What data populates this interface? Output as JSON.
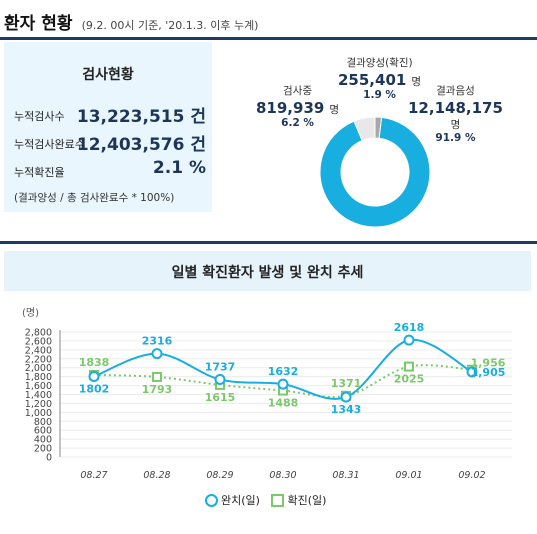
{
  "header": {
    "title": "환자 현황",
    "subtitle": "(9.2. 00시 기준, '20.1.3. 이후 누계)"
  },
  "colors": {
    "navy": "#1f3b63",
    "cyan": "#18aee0",
    "green": "#7bc96a",
    "panel": "#e9f6fd"
  },
  "test_status": {
    "title": "검사현황",
    "rows": [
      {
        "label": "누적검사수",
        "value": "13,223,515 건"
      },
      {
        "label": "누적검사완료수",
        "value": "12,403,576 건"
      },
      {
        "label": "누적확진율",
        "value": "2.1 %"
      }
    ],
    "note": "(결과양성 / 총 검사완료수 * 100%)"
  },
  "donut": {
    "testing": {
      "name": "검사중",
      "value": "819,939",
      "unit": "명",
      "pct": "6.2 %"
    },
    "positive": {
      "name": "결과양성(확진)",
      "value": "255,401",
      "unit": "명",
      "pct": "1.9 %"
    },
    "negative": {
      "name": "결과음성",
      "value": "12,148,175",
      "unit": "명",
      "pct": "91.9 %"
    }
  },
  "trend": {
    "title": "일별 확진환자 발생 및 완치 추세",
    "legend_recovered": "완치(일)",
    "legend_confirmed": "확진(일)"
  },
  "chart_data": [
    {
      "type": "pie",
      "labels": [
        "결과음성",
        "검사중",
        "결과양성(확진)"
      ],
      "values": [
        12148175,
        819939,
        255401
      ],
      "percents": [
        91.9,
        6.2,
        1.9
      ]
    },
    {
      "type": "line",
      "title": "일별 확진환자 발생 및 완치 추세",
      "ylabel": "(명)",
      "categories": [
        "08.27",
        "08.28",
        "08.29",
        "08.30",
        "08.31",
        "09.01",
        "09.02"
      ],
      "yticks": [
        0,
        200,
        400,
        600,
        800,
        "1,000",
        "1,200",
        "1,400",
        "1,600",
        "1,800",
        "2,000",
        "2,200",
        "2,400",
        "2,600",
        "2,800"
      ],
      "ylim": [
        0,
        2800
      ],
      "series": [
        {
          "name": "완치(일)",
          "values": [
            1802,
            2316,
            1737,
            1632,
            1343,
            2618,
            1905
          ],
          "labels": [
            "1802",
            "2316",
            "1737",
            "1632",
            "1343",
            "2618",
            "1,905"
          ]
        },
        {
          "name": "확진(일)",
          "values": [
            1838,
            1793,
            1615,
            1488,
            1371,
            2025,
            1956
          ],
          "labels": [
            "1838",
            "1793",
            "1615",
            "1488",
            "1371",
            "2025",
            "1,956"
          ]
        }
      ]
    }
  ]
}
